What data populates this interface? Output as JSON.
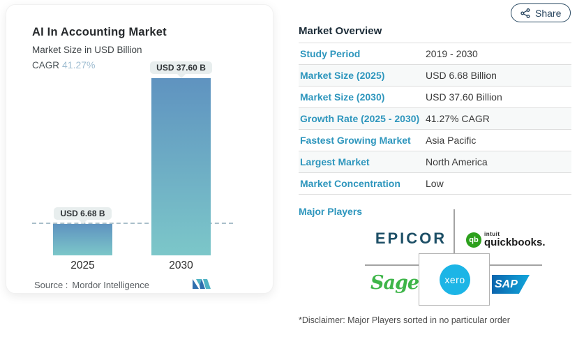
{
  "share_button": {
    "label": "Share"
  },
  "chart_card": {
    "title": "AI In Accounting Market",
    "subtitle": "Market Size in USD Billion",
    "cagr_label": "CAGR",
    "cagr_value": "41.27%",
    "source_label": "Source :",
    "source_name": "Mordor Intelligence"
  },
  "chart_data": {
    "type": "bar",
    "title": "AI In Accounting Market",
    "subtitle": "Market Size in USD Billion",
    "categories": [
      "2025",
      "2030"
    ],
    "values": [
      6.68,
      37.6
    ],
    "bar_labels": [
      "USD 6.68 B",
      "USD 37.60 B"
    ],
    "unit": "USD Billion",
    "cagr": "41.27%",
    "ylim": [
      0,
      37.6
    ],
    "reference_line_value": 6.68,
    "grid": false,
    "legend": false,
    "colors": {
      "bar_gradient_top": "#5f93c0",
      "bar_gradient_bottom": "#7cc7c9",
      "label_chip_bg": "#e8eeee",
      "cagr_accent": "#9fbdd1",
      "reference_line": "#a9bfca"
    }
  },
  "overview": {
    "heading": "Market Overview",
    "rows": [
      {
        "label": "Study Period",
        "value": "2019 - 2030"
      },
      {
        "label": "Market Size (2025)",
        "value": "USD 6.68 Billion"
      },
      {
        "label": "Market Size (2030)",
        "value": "USD 37.60 Billion"
      },
      {
        "label": "Growth Rate (2025 - 2030)",
        "value": "41.27% CAGR"
      },
      {
        "label": "Fastest Growing Market",
        "value": "Asia Pacific"
      },
      {
        "label": "Largest Market",
        "value": "North America"
      },
      {
        "label": "Market Concentration",
        "value": "Low"
      }
    ],
    "major_players": {
      "label": "Major Players",
      "players": [
        "Epicor",
        "Intuit QuickBooks",
        "Sage",
        "Xero",
        "SAP"
      ],
      "logo_text": {
        "epicor": "EPICOR",
        "qb_monogram": "qb",
        "intuit": "intuit",
        "quickbooks": "quickbooks.",
        "sage": "Sage",
        "xero": "xero",
        "sap": "SAP"
      },
      "disclaimer": "*Disclaimer: Major Players sorted in no particular order"
    }
  }
}
